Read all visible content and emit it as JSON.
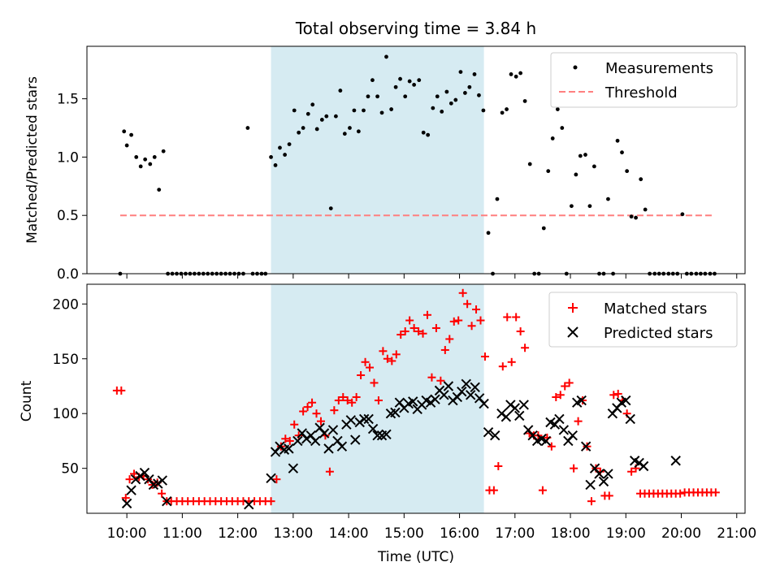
{
  "chart_data": [
    {
      "type": "scatter",
      "title": "Total observing time = 3.84 h",
      "ylabel": "Matched/Predicted stars",
      "xlim": [
        9.28,
        21.15
      ],
      "ylim": [
        0,
        1.95
      ],
      "yticks": [
        "0.0",
        "0.5",
        "1.0",
        "1.5"
      ],
      "xtick_values": [
        10,
        11,
        12,
        13,
        14,
        15,
        16,
        17,
        18,
        19,
        20,
        21
      ],
      "shaded_region": [
        12.6,
        16.44
      ],
      "shade_color": "#add8e6",
      "legend": "top-right",
      "series": [
        {
          "name": "Measurements",
          "marker": "dot",
          "color": "#000000",
          "x": [
            9.88,
            9.95,
            10.0,
            10.08,
            10.17,
            10.25,
            10.33,
            10.42,
            10.5,
            10.58,
            10.66,
            10.74,
            10.82,
            10.9,
            10.98,
            11.06,
            11.14,
            11.22,
            11.3,
            11.38,
            11.46,
            11.54,
            11.62,
            11.7,
            11.78,
            11.86,
            11.94,
            12.02,
            12.1,
            12.18,
            12.27,
            12.35,
            12.43,
            12.5,
            12.6,
            12.68,
            12.76,
            12.85,
            12.93,
            13.02,
            13.1,
            13.18,
            13.27,
            13.35,
            13.43,
            13.52,
            13.6,
            13.68,
            13.77,
            13.85,
            13.93,
            14.02,
            14.1,
            14.18,
            14.27,
            14.35,
            14.43,
            14.52,
            14.6,
            14.68,
            14.77,
            14.85,
            14.93,
            15.02,
            15.1,
            15.18,
            15.27,
            15.35,
            15.43,
            15.52,
            15.6,
            15.68,
            15.77,
            15.85,
            15.93,
            16.02,
            16.1,
            16.18,
            16.27,
            16.35,
            16.43,
            16.52,
            16.6,
            16.68,
            16.77,
            16.85,
            16.93,
            17.02,
            17.1,
            17.18,
            17.27,
            17.35,
            17.43,
            17.52,
            17.6,
            17.68,
            17.77,
            17.85,
            17.93,
            18.02,
            18.1,
            18.18,
            18.27,
            18.35,
            18.43,
            18.52,
            18.6,
            18.68,
            18.77,
            18.85,
            18.93,
            19.02,
            19.1,
            19.18,
            19.27,
            19.35,
            19.43,
            19.52,
            19.6,
            19.68,
            19.77,
            19.85,
            19.93,
            20.02,
            20.1,
            20.18,
            20.27,
            20.35,
            20.43,
            20.52,
            20.6
          ],
          "values": [
            0.0,
            1.22,
            1.1,
            1.19,
            1.0,
            0.92,
            0.98,
            0.94,
            1.0,
            0.72,
            1.05,
            0.0,
            0.0,
            0.0,
            0.0,
            0.0,
            0.0,
            0.0,
            0.0,
            0.0,
            0.0,
            0.0,
            0.0,
            0.0,
            0.0,
            0.0,
            0.0,
            0.0,
            0.0,
            1.25,
            0.0,
            0.0,
            0.0,
            0.0,
            1.0,
            0.93,
            1.08,
            1.02,
            1.11,
            1.4,
            1.21,
            1.25,
            1.37,
            1.45,
            1.24,
            1.32,
            1.35,
            0.56,
            1.35,
            1.57,
            1.2,
            1.25,
            1.4,
            1.22,
            1.4,
            1.52,
            1.66,
            1.52,
            1.38,
            1.86,
            1.41,
            1.6,
            1.67,
            1.52,
            1.65,
            1.62,
            1.66,
            1.21,
            1.19,
            1.42,
            1.52,
            1.39,
            1.56,
            1.46,
            1.49,
            1.73,
            1.55,
            1.6,
            1.71,
            1.53,
            1.4,
            0.35,
            0.0,
            0.64,
            1.38,
            1.41,
            1.71,
            1.69,
            1.72,
            1.48,
            0.94,
            0.0,
            0.0,
            0.39,
            0.88,
            1.16,
            1.41,
            1.25,
            0.0,
            0.58,
            0.85,
            1.01,
            1.02,
            0.58,
            0.92,
            0.0,
            0.0,
            0.64,
            0.0,
            1.14,
            1.04,
            0.88,
            0.49,
            0.48,
            0.81,
            0.55,
            0.0,
            0.0,
            0.0,
            0.0,
            0.0,
            0.0,
            0.0,
            0.51,
            0.0,
            0.0,
            0.0,
            0.0,
            0.0,
            0.0,
            0.0
          ]
        },
        {
          "name": "Threshold",
          "marker": "dashed-line",
          "color": "#ff7f7f",
          "x": [
            9.88,
            20.6
          ],
          "values": [
            0.5,
            0.5
          ]
        }
      ]
    },
    {
      "type": "scatter",
      "xlabel": "Time (UTC)",
      "ylabel": "Count",
      "xlim": [
        9.28,
        21.15
      ],
      "ylim": [
        9,
        218
      ],
      "yticks": [
        "50",
        "100",
        "150",
        "200"
      ],
      "xticks": [
        "10:00",
        "11:00",
        "12:00",
        "13:00",
        "14:00",
        "15:00",
        "16:00",
        "17:00",
        "18:00",
        "19:00",
        "20:00",
        "21:00"
      ],
      "xtick_values": [
        10,
        11,
        12,
        13,
        14,
        15,
        16,
        17,
        18,
        19,
        20,
        21
      ],
      "shaded_region": [
        12.6,
        16.44
      ],
      "shade_color": "#add8e6",
      "legend": "top-right",
      "series": [
        {
          "name": "Matched stars",
          "marker": "plus",
          "color": "#ff0000",
          "x": [
            9.82,
            9.9,
            9.98,
            10.05,
            10.13,
            10.22,
            10.3,
            10.38,
            10.46,
            10.55,
            10.63,
            10.72,
            10.8,
            10.9,
            11.0,
            11.1,
            11.2,
            11.3,
            11.4,
            11.5,
            11.6,
            11.7,
            11.8,
            11.9,
            12.0,
            12.1,
            12.2,
            12.3,
            12.4,
            12.5,
            12.6,
            12.7,
            12.78,
            12.86,
            12.94,
            13.02,
            13.1,
            13.18,
            13.26,
            13.34,
            13.42,
            13.5,
            13.58,
            13.66,
            13.74,
            13.82,
            13.9,
            13.98,
            14.06,
            14.14,
            14.22,
            14.3,
            14.38,
            14.46,
            14.54,
            14.62,
            14.7,
            14.78,
            14.86,
            14.94,
            15.02,
            15.1,
            15.18,
            15.26,
            15.34,
            15.42,
            15.5,
            15.58,
            15.66,
            15.74,
            15.82,
            15.9,
            15.98,
            16.06,
            16.14,
            16.22,
            16.3,
            16.38,
            16.46,
            16.54,
            16.62,
            16.7,
            16.78,
            16.86,
            16.94,
            17.02,
            17.1,
            17.18,
            17.26,
            17.34,
            17.42,
            17.5,
            17.58,
            17.66,
            17.74,
            17.82,
            17.9,
            17.98,
            18.06,
            18.14,
            18.22,
            18.3,
            18.38,
            18.46,
            18.54,
            18.62,
            18.7,
            18.78,
            18.86,
            18.94,
            19.02,
            19.1,
            19.18,
            19.26,
            19.34,
            19.42,
            19.5,
            19.58,
            19.66,
            19.74,
            19.82,
            19.9,
            19.98,
            20.06,
            20.14,
            20.22,
            20.3,
            20.38,
            20.46,
            20.54,
            20.62
          ],
          "values": [
            121,
            121,
            23,
            40,
            45,
            42,
            43,
            40,
            35,
            37,
            27,
            20,
            20,
            20,
            20,
            20,
            20,
            20,
            20,
            20,
            20,
            20,
            20,
            20,
            20,
            20,
            20,
            20,
            20,
            20,
            20,
            40,
            70,
            77,
            75,
            90,
            80,
            102,
            106,
            110,
            100,
            93,
            80,
            47,
            103,
            112,
            115,
            112,
            110,
            115,
            135,
            147,
            142,
            128,
            112,
            157,
            150,
            148,
            154,
            172,
            175,
            185,
            178,
            175,
            173,
            190,
            133,
            178,
            130,
            158,
            168,
            184,
            185,
            210,
            200,
            180,
            195,
            185,
            152,
            30,
            30,
            52,
            143,
            188,
            147,
            188,
            175,
            160,
            82,
            80,
            80,
            30,
            78,
            70,
            115,
            117,
            125,
            128,
            50,
            93,
            112,
            70,
            20,
            50,
            47,
            25,
            25,
            117,
            118,
            112,
            100,
            47,
            50,
            27,
            27,
            27,
            27,
            27,
            27,
            27,
            27,
            27,
            27,
            28,
            28,
            28,
            28,
            28,
            28,
            28,
            28
          ]
        },
        {
          "name": "Predicted stars",
          "marker": "x",
          "color": "#000000",
          "x": [
            10.0,
            10.08,
            10.16,
            10.24,
            10.32,
            10.4,
            10.48,
            10.56,
            10.64,
            10.72,
            12.2,
            12.6,
            12.68,
            12.76,
            12.84,
            12.92,
            13.0,
            13.08,
            13.16,
            13.24,
            13.32,
            13.4,
            13.48,
            13.56,
            13.64,
            13.72,
            13.8,
            13.88,
            13.96,
            14.04,
            14.12,
            14.2,
            14.28,
            14.36,
            14.44,
            14.52,
            14.6,
            14.68,
            14.76,
            14.84,
            14.92,
            15.0,
            15.08,
            15.16,
            15.24,
            15.32,
            15.4,
            15.48,
            15.56,
            15.64,
            15.72,
            15.8,
            15.88,
            15.96,
            16.04,
            16.12,
            16.2,
            16.28,
            16.36,
            16.44,
            16.52,
            16.64,
            16.76,
            16.84,
            16.92,
            17.0,
            17.08,
            17.16,
            17.24,
            17.32,
            17.4,
            17.48,
            17.56,
            17.64,
            17.72,
            17.8,
            17.88,
            17.96,
            18.04,
            18.12,
            18.2,
            18.28,
            18.36,
            18.44,
            18.52,
            18.6,
            18.68,
            18.76,
            18.84,
            18.92,
            19.0,
            19.08,
            19.16,
            19.24,
            19.32,
            19.9
          ],
          "values": [
            18,
            30,
            40,
            43,
            46,
            40,
            35,
            36,
            39,
            20,
            17,
            41,
            65,
            70,
            67,
            68,
            50,
            75,
            82,
            77,
            80,
            75,
            87,
            82,
            68,
            85,
            75,
            70,
            90,
            94,
            76,
            92,
            95,
            95,
            86,
            80,
            80,
            81,
            100,
            101,
            110,
            105,
            109,
            111,
            104,
            108,
            112,
            110,
            113,
            121,
            117,
            125,
            112,
            115,
            120,
            127,
            117,
            124,
            114,
            109,
            83,
            80,
            100,
            97,
            108,
            105,
            98,
            108,
            85,
            80,
            75,
            77,
            75,
            92,
            90,
            95,
            85,
            75,
            80,
            110,
            112,
            70,
            35,
            50,
            45,
            38,
            45,
            100,
            105,
            110,
            112,
            95,
            57,
            55,
            52,
            57
          ]
        }
      ]
    }
  ]
}
